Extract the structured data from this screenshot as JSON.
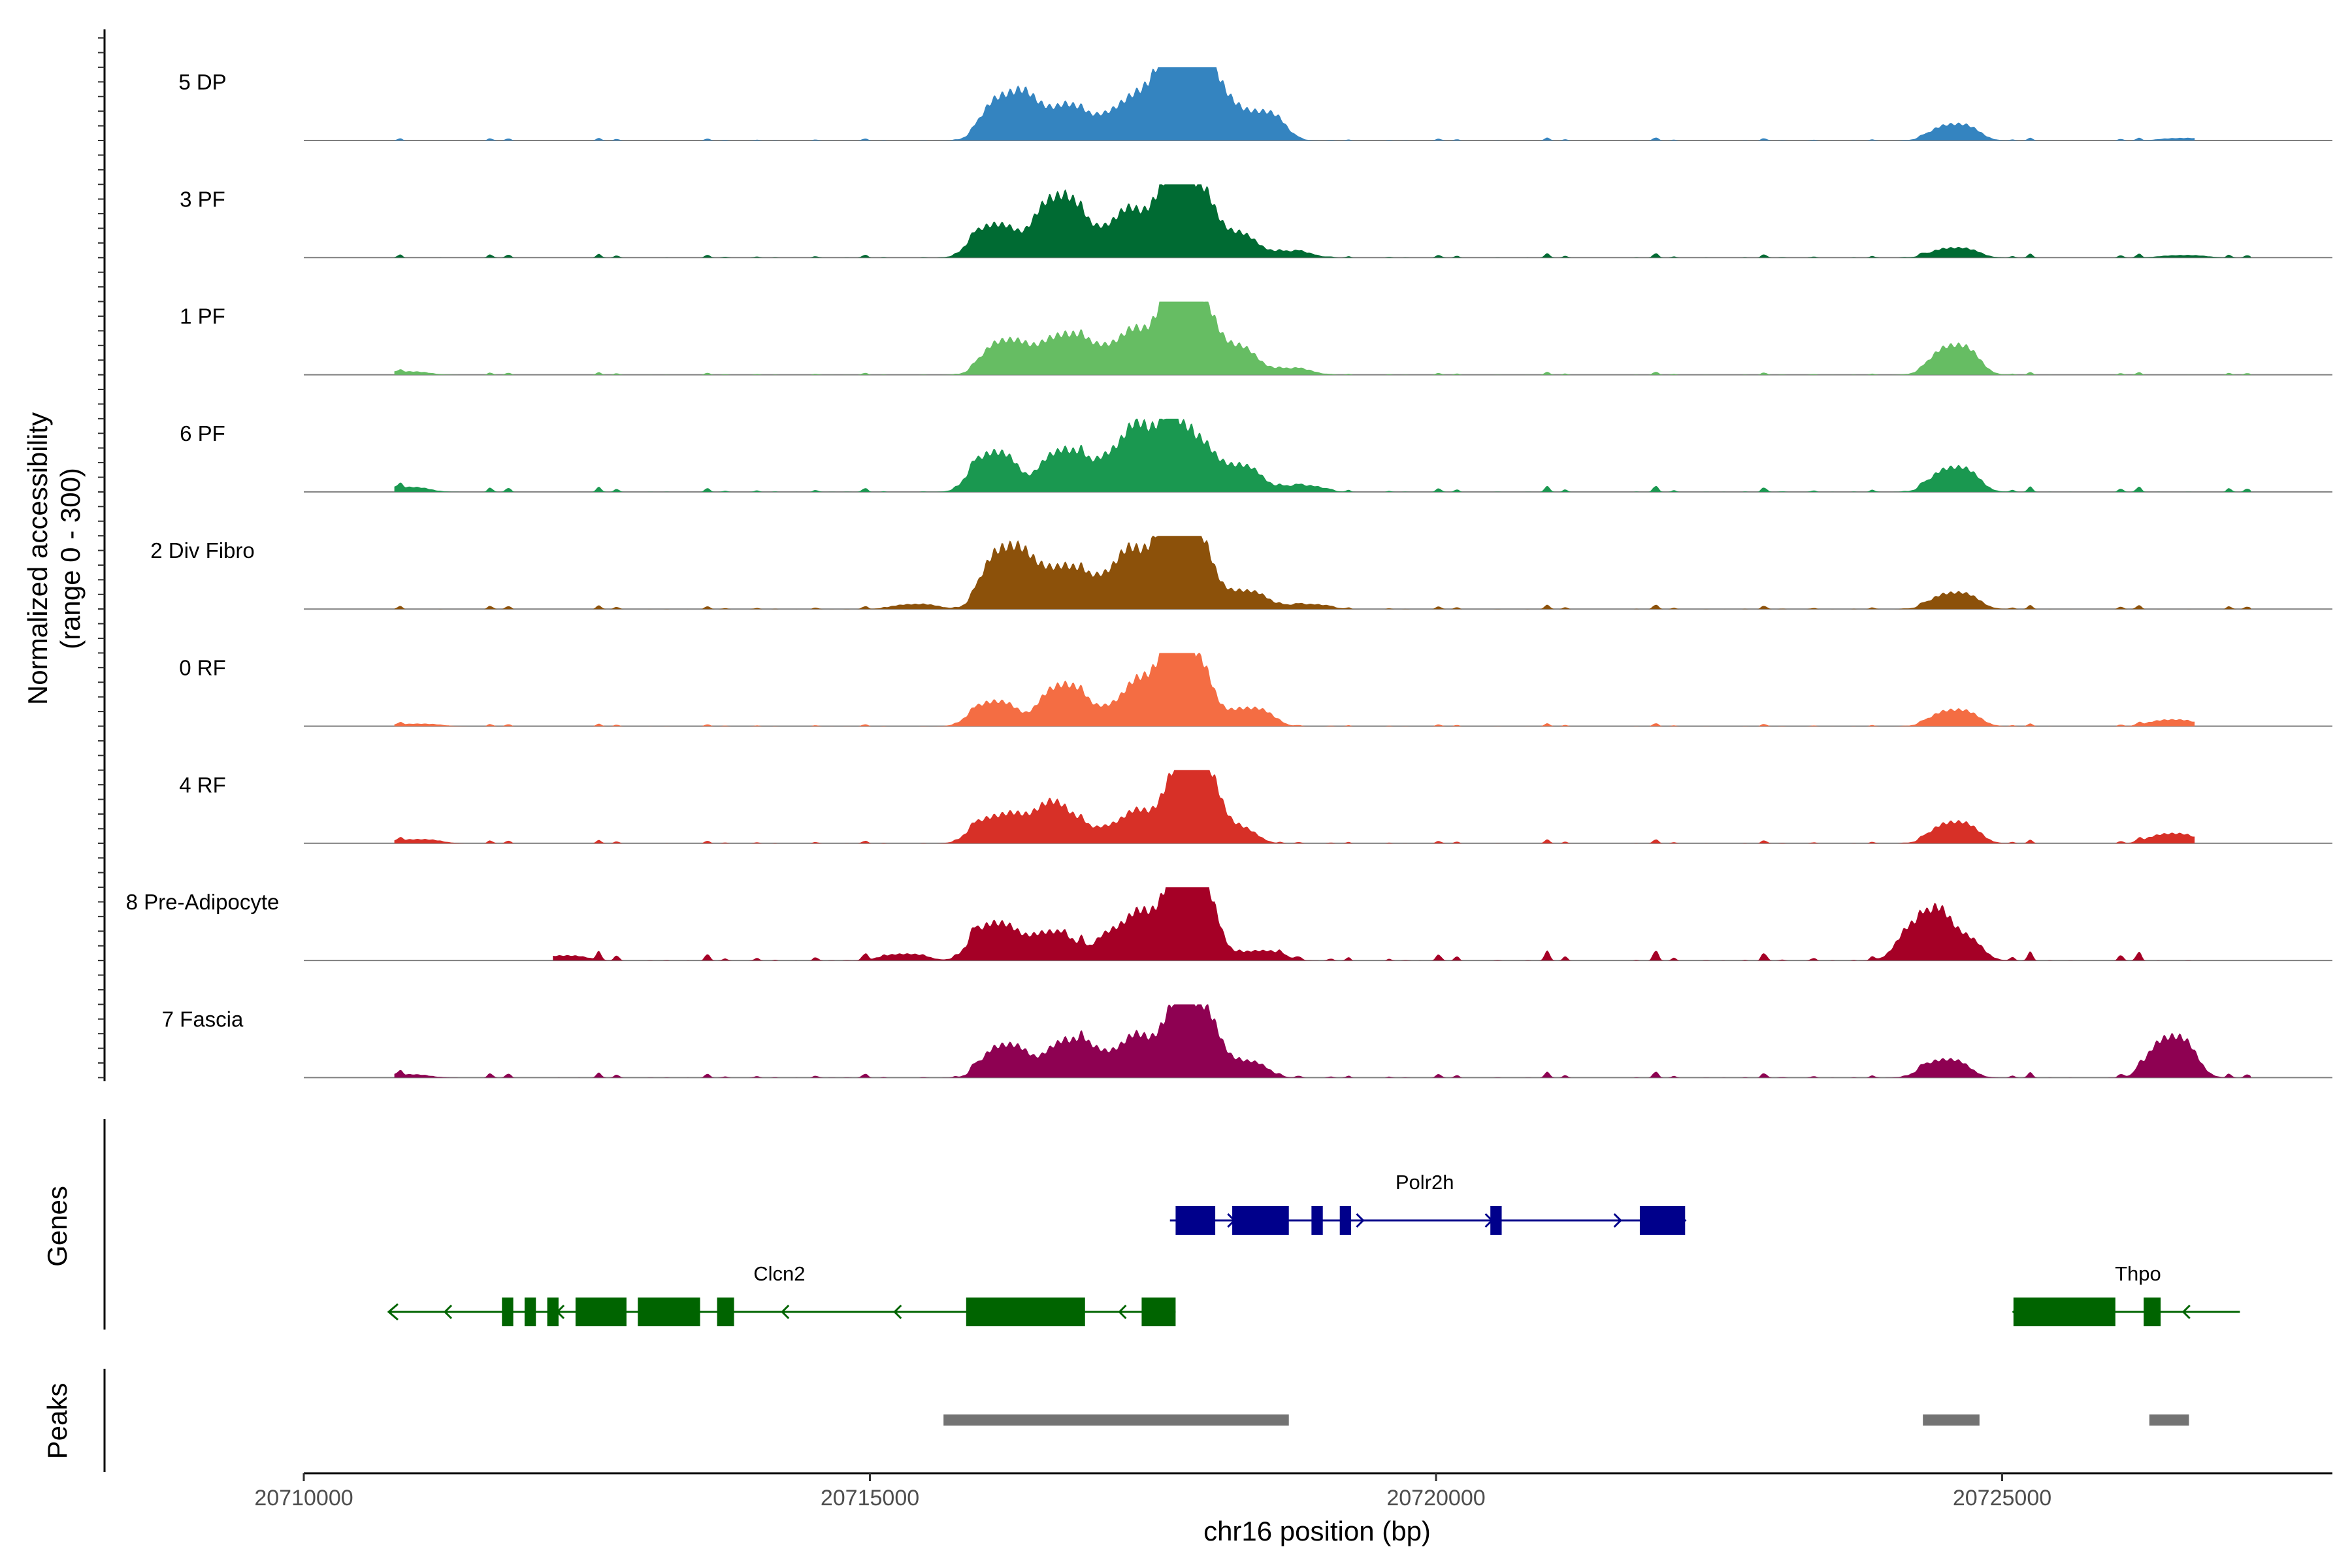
{
  "chart_data": {
    "type": "area",
    "title": "",
    "chromosome": "chr16",
    "xlabel": "chr16 position (bp)",
    "ylabel": "Normalized accessibility\n(range 0 - 300)",
    "xlim": [
      20710000,
      20728000
    ],
    "x_ticks": [
      20710000,
      20715000,
      20720000,
      20725000
    ],
    "x_tick_labels": [
      "20710000",
      "20715000",
      "20720000",
      "20725000"
    ],
    "ylim": [
      0,
      300
    ],
    "series": [
      {
        "name": "5 DP",
        "color": "#3484c0",
        "peaks": [
          [
            20716200,
            0.55
          ],
          [
            20716600,
            0.38
          ],
          [
            20717000,
            0.3
          ],
          [
            20717450,
            0.6
          ],
          [
            20717800,
            0.94
          ],
          [
            20718000,
            0.52
          ],
          [
            20718450,
            0.35
          ],
          [
            20724580,
            0.2
          ],
          [
            20726600,
            0.03
          ]
        ],
        "noise": 0.015,
        "extent": [
          20710800,
          20726700
        ]
      },
      {
        "name": "3 PF",
        "color": "#006b33",
        "peaks": [
          [
            20716100,
            0.4
          ],
          [
            20716650,
            0.74
          ],
          [
            20717100,
            0.35
          ],
          [
            20717450,
            0.48
          ],
          [
            20717800,
            0.88
          ],
          [
            20718200,
            0.3
          ],
          [
            20718700,
            0.08
          ],
          [
            20724580,
            0.12
          ],
          [
            20726600,
            0.03
          ]
        ],
        "noise": 0.022,
        "extent": [
          20710800,
          20727200
        ]
      },
      {
        "name": "1 PF",
        "color": "#66bd63",
        "peaks": [
          [
            20716200,
            0.42
          ],
          [
            20716700,
            0.48
          ],
          [
            20717150,
            0.35
          ],
          [
            20717500,
            0.42
          ],
          [
            20717800,
            0.96
          ],
          [
            20718200,
            0.35
          ],
          [
            20718700,
            0.08
          ],
          [
            20724580,
            0.36
          ],
          [
            20710900,
            0.04
          ]
        ],
        "noise": 0.015,
        "extent": [
          20710800,
          20727200
        ]
      },
      {
        "name": "6 PF",
        "color": "#1a9850",
        "peaks": [
          [
            20716100,
            0.48
          ],
          [
            20716700,
            0.5
          ],
          [
            20717200,
            0.48
          ],
          [
            20717500,
            0.55
          ],
          [
            20717800,
            0.65
          ],
          [
            20718250,
            0.32
          ],
          [
            20718800,
            0.08
          ],
          [
            20724580,
            0.3
          ],
          [
            20710900,
            0.06
          ]
        ],
        "noise": 0.03,
        "extent": [
          20710800,
          20727200
        ]
      },
      {
        "name": "2 Div Fibro",
        "color": "#8c510a",
        "peaks": [
          [
            20716200,
            0.75
          ],
          [
            20716650,
            0.5
          ],
          [
            20717100,
            0.4
          ],
          [
            20717450,
            0.62
          ],
          [
            20717800,
            1.0
          ],
          [
            20718300,
            0.22
          ],
          [
            20718850,
            0.06
          ],
          [
            20724580,
            0.2
          ],
          [
            20715400,
            0.06
          ]
        ],
        "noise": 0.022,
        "extent": [
          20710800,
          20727200
        ]
      },
      {
        "name": "0 RF",
        "color": "#f46d43",
        "peaks": [
          [
            20716100,
            0.3
          ],
          [
            20716700,
            0.5
          ],
          [
            20717200,
            0.25
          ],
          [
            20717500,
            0.45
          ],
          [
            20717800,
            0.9
          ],
          [
            20718350,
            0.22
          ],
          [
            20724580,
            0.2
          ],
          [
            20726500,
            0.08
          ],
          [
            20711000,
            0.03
          ]
        ],
        "noise": 0.015,
        "extent": [
          20710800,
          20726700
        ]
      },
      {
        "name": "4 RF",
        "color": "#d73027",
        "peaks": [
          [
            20716100,
            0.32
          ],
          [
            20716500,
            0.25
          ],
          [
            20716700,
            0.3
          ],
          [
            20717200,
            0.22
          ],
          [
            20717500,
            0.28
          ],
          [
            20717850,
            0.95
          ],
          [
            20718200,
            0.2
          ],
          [
            20724580,
            0.26
          ],
          [
            20726500,
            0.12
          ],
          [
            20711000,
            0.05
          ]
        ],
        "noise": 0.02,
        "extent": [
          20710800,
          20726700
        ]
      },
      {
        "name": "8 Pre-Adipocyte",
        "color": "#a50026",
        "peaks": [
          [
            20716100,
            0.45
          ],
          [
            20716600,
            0.35
          ],
          [
            20717200,
            0.38
          ],
          [
            20717550,
            0.45
          ],
          [
            20717850,
            1.0
          ],
          [
            20718450,
            0.12
          ],
          [
            20724300,
            0.48
          ],
          [
            20724600,
            0.3
          ],
          [
            20715300,
            0.08
          ],
          [
            20712300,
            0.06
          ]
        ],
        "noise": 0.05,
        "extent": [
          20712200,
          20726900
        ]
      },
      {
        "name": "7 Fascia",
        "color": "#8e0152",
        "peaks": [
          [
            20716200,
            0.4
          ],
          [
            20716750,
            0.45
          ],
          [
            20717200,
            0.3
          ],
          [
            20717500,
            0.35
          ],
          [
            20717850,
            0.9
          ],
          [
            20718300,
            0.2
          ],
          [
            20724500,
            0.22
          ],
          [
            20726500,
            0.5
          ],
          [
            20710900,
            0.04
          ]
        ],
        "noise": 0.03,
        "extent": [
          20710800,
          20727200
        ]
      }
    ],
    "genes": [
      {
        "name": "Polr2h",
        "strand": "+",
        "color": "#00008b",
        "start": 20717650,
        "end": 20722200,
        "exons": [
          [
            20717700,
            20718050
          ],
          [
            20718200,
            20718700
          ],
          [
            20718900,
            20719000
          ],
          [
            20719150,
            20719250
          ],
          [
            20720480,
            20720580
          ],
          [
            20721800,
            20722200
          ]
        ]
      },
      {
        "name": "Clcn2",
        "strand": "-",
        "color": "#006400",
        "start": 20710750,
        "end": 20717700,
        "exons": [
          [
            20711750,
            20711850
          ],
          [
            20711950,
            20712050
          ],
          [
            20712150,
            20712250
          ],
          [
            20712400,
            20712850
          ],
          [
            20712950,
            20713500
          ],
          [
            20713650,
            20713800
          ],
          [
            20715850,
            20716900
          ],
          [
            20717400,
            20717700
          ]
        ]
      },
      {
        "name": "Thpo",
        "strand": "-",
        "color": "#006400",
        "start": 20725100,
        "end": 20727100,
        "exons": [
          [
            20725100,
            20726000
          ],
          [
            20726250,
            20726400
          ]
        ]
      }
    ],
    "peak_regions": [
      [
        20715650,
        20718700
      ],
      [
        20724300,
        20724800
      ],
      [
        20726300,
        20726650
      ]
    ],
    "peaks_color": "#737373",
    "panel_labels": {
      "genes": "Genes",
      "peaks": "Peaks"
    }
  }
}
